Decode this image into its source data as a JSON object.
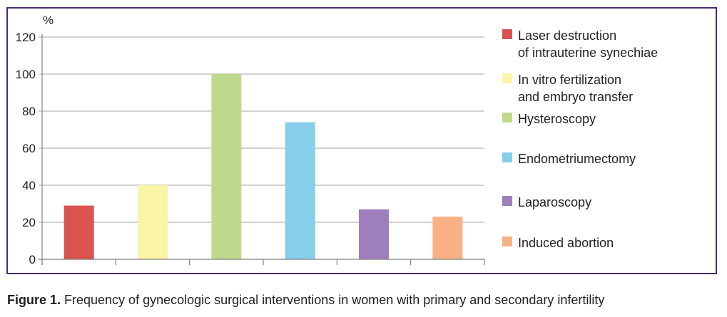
{
  "chart_data": {
    "type": "bar",
    "ylabel": "%",
    "ylim": [
      0,
      120
    ],
    "yticks": [
      "0",
      "20",
      "40",
      "60",
      "80",
      "100",
      "120"
    ],
    "grid": true,
    "legend_placement": "right",
    "series": [
      {
        "name": "Laser destruction\nof intrauterine synechiae",
        "value": 29,
        "color": "#d9534f"
      },
      {
        "name": "In vitro fertilization\nand embryo transfer",
        "value": 40,
        "color": "#faf5a6"
      },
      {
        "name": "Hysteroscopy",
        "value": 100,
        "color": "#bfd98c"
      },
      {
        "name": "Endometriumectomy",
        "value": 74,
        "color": "#87ceeb"
      },
      {
        "name": "Laparoscopy",
        "value": 27,
        "color": "#9e7fbe"
      },
      {
        "name": "Induced abortion",
        "value": 23,
        "color": "#f7b183"
      }
    ]
  },
  "caption": {
    "label": "Figure 1.",
    "text": " Frequency of gynecologic surgical interventions in women with primary and secondary infertility"
  }
}
